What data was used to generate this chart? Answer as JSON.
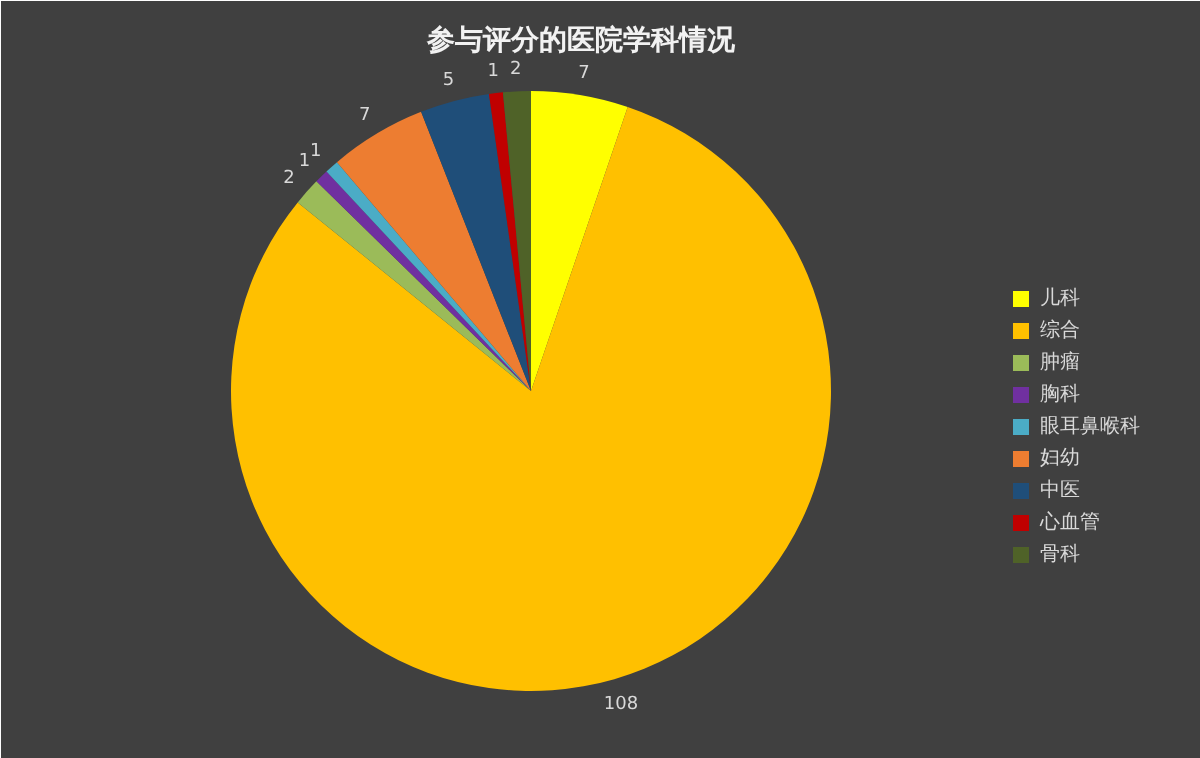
{
  "chart_data": {
    "type": "pie",
    "title": "参与评分的医院学科情况",
    "categories": [
      "儿科",
      "综合",
      "肿瘤",
      "胸科",
      "眼耳鼻喉科",
      "妇幼",
      "中医",
      "心血管",
      "骨科"
    ],
    "values": [
      7,
      108,
      2,
      1,
      1,
      7,
      5,
      1,
      2
    ],
    "colors": [
      "#ffff00",
      "#ffc000",
      "#9bbb59",
      "#7030a0",
      "#4bacc6",
      "#ed7d31",
      "#1f4e79",
      "#c00000",
      "#4f6228"
    ],
    "data_labels": true,
    "legend": "right"
  }
}
